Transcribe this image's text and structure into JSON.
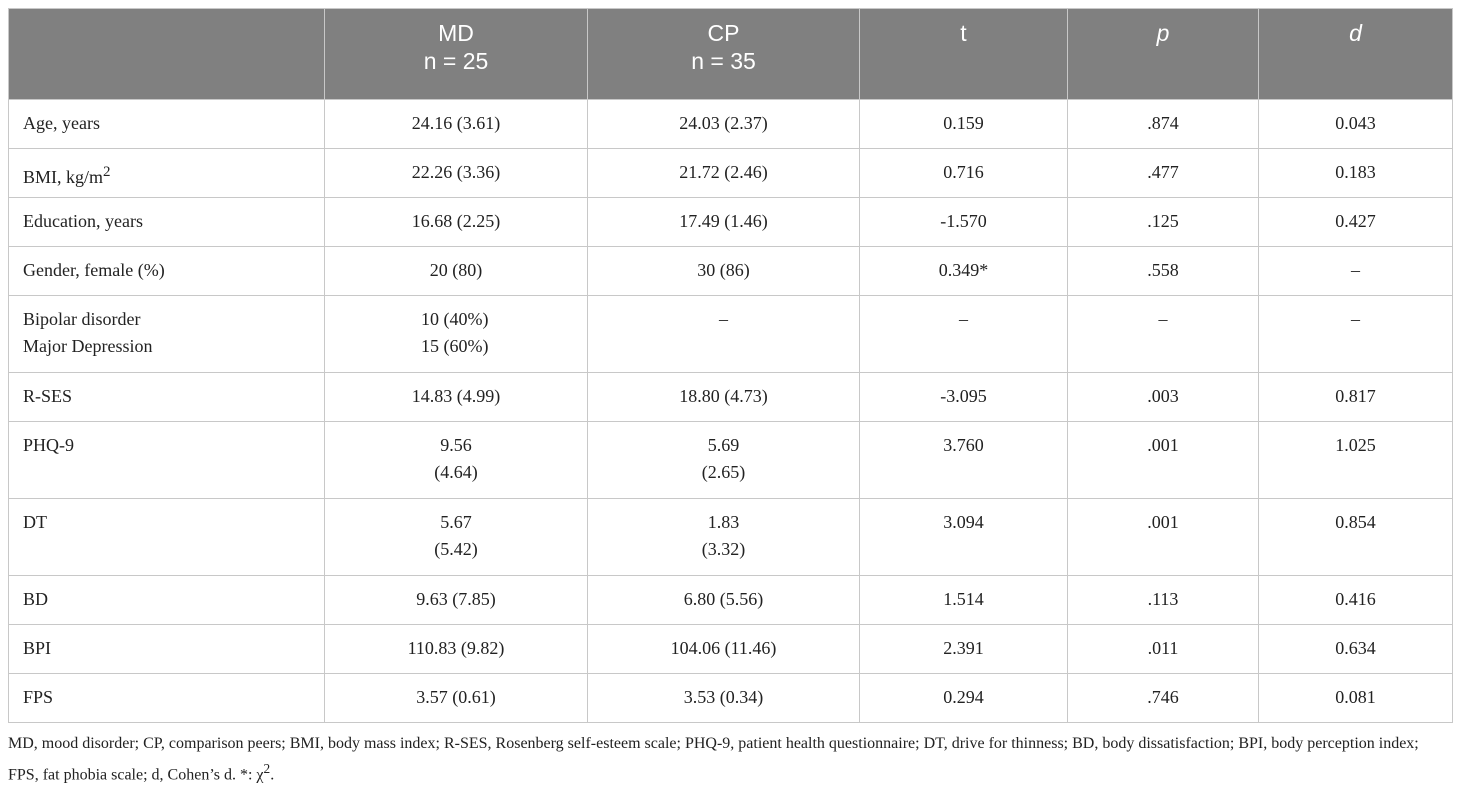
{
  "table": {
    "headers": [
      {
        "line1": "",
        "line2": ""
      },
      {
        "line1": "MD",
        "line2": "n = 25"
      },
      {
        "line1": "CP",
        "line2": "n = 35"
      },
      {
        "line1": "t",
        "line2": ""
      },
      {
        "line1": "p",
        "line2": ""
      },
      {
        "line1": "d",
        "line2": ""
      }
    ],
    "rows": [
      {
        "label": "Age, years",
        "md": [
          "24.16 (3.61)"
        ],
        "cp": [
          "24.03 (2.37)"
        ],
        "t": "0.159",
        "p": ".874",
        "d": "0.043"
      },
      {
        "label": "BMI, kg/m",
        "label_sup": "2",
        "md": [
          "22.26 (3.36)"
        ],
        "cp": [
          "21.72 (2.46)"
        ],
        "t": "0.716",
        "p": ".477",
        "d": "0.183"
      },
      {
        "label": "Education, years",
        "md": [
          "16.68 (2.25)"
        ],
        "cp": [
          "17.49 (1.46)"
        ],
        "t": "-1.570",
        "p": ".125",
        "d": "0.427"
      },
      {
        "label": "Gender, female (%)",
        "md": [
          "20 (80)"
        ],
        "cp": [
          "30 (86)"
        ],
        "t": "0.349*",
        "p": ".558",
        "d": "–"
      },
      {
        "label_lines": [
          "Bipolar disorder",
          "Major Depression"
        ],
        "md": [
          "10 (40%)",
          "15 (60%)"
        ],
        "cp": [
          "–"
        ],
        "t": "–",
        "p": "–",
        "d": "–"
      },
      {
        "label": "R-SES",
        "md": [
          "14.83 (4.99)"
        ],
        "cp": [
          "18.80 (4.73)"
        ],
        "t": "-3.095",
        "p": ".003",
        "d": "0.817"
      },
      {
        "label": "PHQ-9",
        "md": [
          "9.56",
          "(4.64)"
        ],
        "cp": [
          "5.69",
          "(2.65)"
        ],
        "t": "3.760",
        "p": ".001",
        "d": "1.025"
      },
      {
        "label": "DT",
        "md": [
          "5.67",
          "(5.42)"
        ],
        "cp": [
          "1.83",
          "(3.32)"
        ],
        "t": "3.094",
        "p": ".001",
        "d": "0.854"
      },
      {
        "label": "BD",
        "md": [
          "9.63 (7.85)"
        ],
        "cp": [
          "6.80 (5.56)"
        ],
        "t": "1.514",
        "p": ".113",
        "d": "0.416"
      },
      {
        "label": "BPI",
        "md": [
          "110.83 (9.82)"
        ],
        "cp": [
          "104.06 (11.46)"
        ],
        "t": "2.391",
        "p": ".011",
        "d": "0.634"
      },
      {
        "label": "FPS",
        "md": [
          "3.57 (0.61)"
        ],
        "cp": [
          "3.53 (0.34)"
        ],
        "t": "0.294",
        "p": ".746",
        "d": "0.081"
      }
    ]
  },
  "footnote": {
    "text": "MD, mood disorder; CP, comparison peers; BMI, body mass index; R-SES, Rosenberg self-esteem scale; PHQ-9, patient health questionnaire; DT, drive for thinness; BD, body dissatisfaction; BPI, body perception index; FPS, fat phobia scale; d, Cohen’s d. *: χ",
    "sup": "2",
    "end": "."
  }
}
